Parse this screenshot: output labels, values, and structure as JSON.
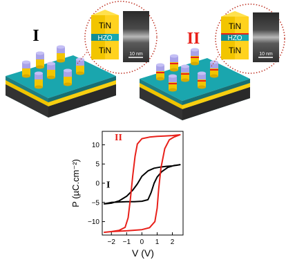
{
  "panel_I": {
    "label": "I",
    "stack": {
      "top": "TiN",
      "middle": "HZO",
      "bottom": "TiN"
    },
    "scale_bar": "10 nm"
  },
  "panel_II": {
    "label": "II",
    "stack": {
      "top": "TiN",
      "middle": "HZO",
      "bottom": "TiN"
    },
    "scale_bar": "10 nm"
  },
  "colors": {
    "device_I": "#000000",
    "device_II": "#e8201a",
    "tin_gold": "#f2c500",
    "hzo_teal": "#17a7b0",
    "pillar_purple": "#a9a2e8",
    "dotted_circle": "#c0392b"
  },
  "chart_data": {
    "type": "line",
    "xlabel": "V (V)",
    "ylabel": "P (µC.cm⁻²)",
    "xlim": [
      -2.6,
      2.7
    ],
    "ylim": [
      -13.5,
      13.5
    ],
    "xticks": [
      -2,
      -1,
      0,
      1,
      2
    ],
    "yticks": [
      -10,
      -5,
      0,
      5,
      10
    ],
    "series": [
      {
        "name": "I",
        "color": "#000000",
        "points": [
          [
            -2.5,
            -5.4
          ],
          [
            -2.0,
            -5.2
          ],
          [
            -1.5,
            -4.6
          ],
          [
            -1.0,
            -3.4
          ],
          [
            -0.6,
            -1.8
          ],
          [
            -0.3,
            -0.2
          ],
          [
            0.0,
            1.8
          ],
          [
            0.4,
            3.2
          ],
          [
            0.8,
            3.9
          ],
          [
            1.2,
            4.2
          ],
          [
            1.6,
            4.4
          ],
          [
            2.0,
            4.5
          ],
          [
            2.5,
            4.8
          ],
          [
            2.1,
            4.6
          ],
          [
            1.7,
            4.1
          ],
          [
            1.3,
            3.0
          ],
          [
            1.0,
            1.6
          ],
          [
            0.8,
            0.0
          ],
          [
            0.6,
            -2.5
          ],
          [
            0.4,
            -4.3
          ],
          [
            0.0,
            -4.7
          ],
          [
            -0.5,
            -4.8
          ],
          [
            -1.0,
            -4.8
          ],
          [
            -1.5,
            -4.9
          ],
          [
            -2.0,
            -5.0
          ],
          [
            -2.5,
            -5.4
          ]
        ]
      },
      {
        "name": "II",
        "color": "#e8201a",
        "points": [
          [
            -2.5,
            -12.8
          ],
          [
            -2.0,
            -12.6
          ],
          [
            -1.5,
            -12.3
          ],
          [
            -1.1,
            -11.5
          ],
          [
            -0.9,
            -9.0
          ],
          [
            -0.75,
            -4.0
          ],
          [
            -0.6,
            2.0
          ],
          [
            -0.45,
            7.0
          ],
          [
            -0.3,
            10.2
          ],
          [
            0.0,
            11.6
          ],
          [
            0.5,
            12.0
          ],
          [
            1.0,
            12.2
          ],
          [
            1.5,
            12.3
          ],
          [
            2.0,
            12.4
          ],
          [
            2.5,
            12.6
          ],
          [
            2.1,
            12.0
          ],
          [
            1.8,
            11.3
          ],
          [
            1.5,
            9.0
          ],
          [
            1.25,
            4.0
          ],
          [
            1.1,
            -1.5
          ],
          [
            1.0,
            -6.5
          ],
          [
            0.85,
            -10.0
          ],
          [
            0.5,
            -11.6
          ],
          [
            0.0,
            -12.1
          ],
          [
            -1.0,
            -12.4
          ],
          [
            -2.0,
            -12.6
          ],
          [
            -2.5,
            -12.8
          ]
        ]
      }
    ]
  }
}
